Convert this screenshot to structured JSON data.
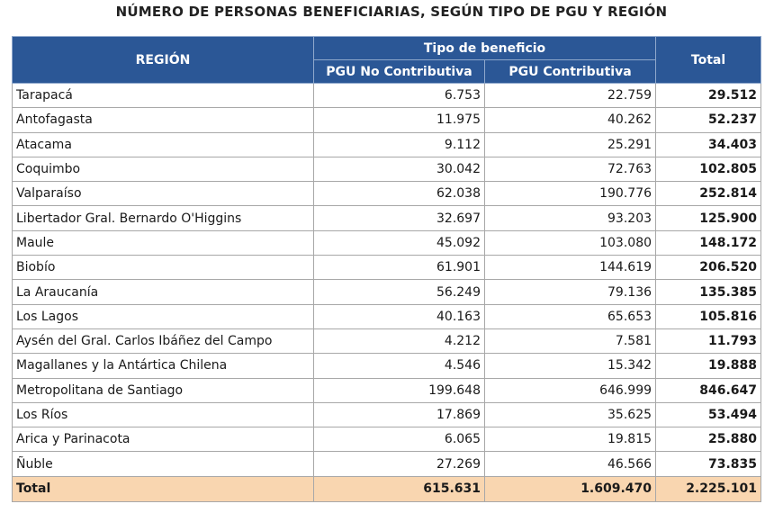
{
  "title": "NÚMERO DE PERSONAS BENEFICIARIAS, SEGÚN TIPO DE PGU Y REGIÓN",
  "header": {
    "region": "REGIÓN",
    "benefit_type": "Tipo de beneficio",
    "no_contributiva": "PGU No Contributiva",
    "contributiva": "PGU Contributiva",
    "total": "Total"
  },
  "rows": [
    {
      "region": "Tarapacá",
      "no_contrib": "6.753",
      "contrib": "22.759",
      "total": "29.512"
    },
    {
      "region": "Antofagasta",
      "no_contrib": "11.975",
      "contrib": "40.262",
      "total": "52.237"
    },
    {
      "region": "Atacama",
      "no_contrib": "9.112",
      "contrib": "25.291",
      "total": "34.403"
    },
    {
      "region": "Coquimbo",
      "no_contrib": "30.042",
      "contrib": "72.763",
      "total": "102.805"
    },
    {
      "region": "Valparaíso",
      "no_contrib": "62.038",
      "contrib": "190.776",
      "total": "252.814"
    },
    {
      "region": "Libertador Gral. Bernardo O'Higgins",
      "no_contrib": "32.697",
      "contrib": "93.203",
      "total": "125.900"
    },
    {
      "region": "Maule",
      "no_contrib": "45.092",
      "contrib": "103.080",
      "total": "148.172"
    },
    {
      "region": "Biobío",
      "no_contrib": "61.901",
      "contrib": "144.619",
      "total": "206.520"
    },
    {
      "region": "La Araucanía",
      "no_contrib": "56.249",
      "contrib": "79.136",
      "total": "135.385"
    },
    {
      "region": "Los Lagos",
      "no_contrib": "40.163",
      "contrib": "65.653",
      "total": "105.816"
    },
    {
      "region": "Aysén del Gral. Carlos Ibáñez del Campo",
      "no_contrib": "4.212",
      "contrib": "7.581",
      "total": "11.793"
    },
    {
      "region": "Magallanes y la Antártica Chilena",
      "no_contrib": "4.546",
      "contrib": "15.342",
      "total": "19.888"
    },
    {
      "region": "Metropolitana de Santiago",
      "no_contrib": "199.648",
      "contrib": "646.999",
      "total": "846.647"
    },
    {
      "region": "Los Ríos",
      "no_contrib": "17.869",
      "contrib": "35.625",
      "total": "53.494"
    },
    {
      "region": "Arica y Parinacota",
      "no_contrib": "6.065",
      "contrib": "19.815",
      "total": "25.880"
    },
    {
      "region": "Ñuble",
      "no_contrib": "27.269",
      "contrib": "46.566",
      "total": "73.835"
    }
  ],
  "totals": {
    "label": "Total",
    "no_contrib": "615.631",
    "contrib": "1.609.470",
    "total": "2.225.101"
  },
  "colors": {
    "header_bg": "#2b5796",
    "total_row_bg": "#f9d6b0"
  }
}
